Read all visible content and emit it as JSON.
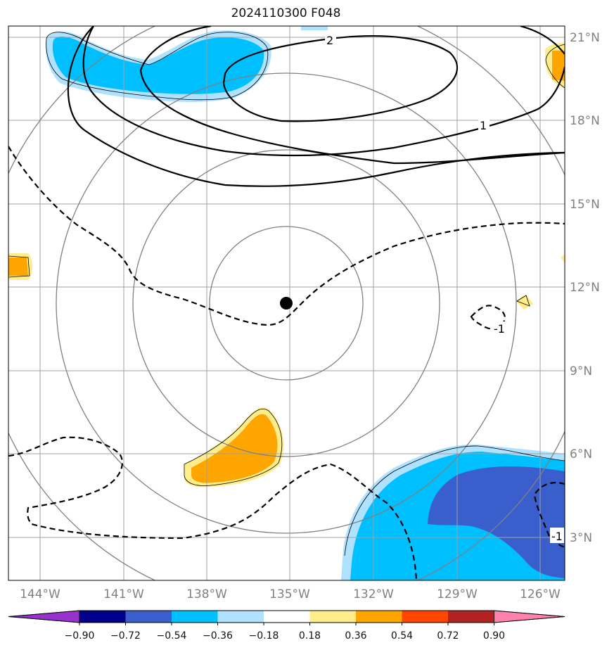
{
  "title": "2024110300 F048",
  "map": {
    "lon_range": [
      -145.5,
      -124.5
    ],
    "lat_range": [
      1.5,
      21.5
    ],
    "lat_labels": [
      "3°N",
      "6°N",
      "9°N",
      "12°N",
      "15°N",
      "18°N",
      "21°N"
    ],
    "lon_labels": [
      "144°W",
      "141°W",
      "138°W",
      "135°W",
      "132°W",
      "129°W",
      "126°W"
    ],
    "grid": true,
    "storm_center": {
      "lon": -135.0,
      "lat": 11.5
    },
    "range_rings": "concentric circles around storm center",
    "contour_labels": [
      "2",
      "1",
      "-1",
      "-1"
    ]
  },
  "colorbar": {
    "ticks": [
      "−0.90",
      "−0.72",
      "−0.54",
      "−0.36",
      "−0.18",
      "0.18",
      "0.36",
      "0.54",
      "0.72",
      "0.90"
    ],
    "colors": [
      "#9932cc",
      "#00008b",
      "#3a5fcd",
      "#00bfff",
      "#b0e2ff",
      "#ffffff",
      "#ffec8b",
      "#ffa500",
      "#ff4500",
      "#b22222",
      "#ff82ab"
    ],
    "extend": "both"
  },
  "colors": {
    "grid": "#a0a0a0",
    "rings": "#808080",
    "contour": "#000000"
  }
}
